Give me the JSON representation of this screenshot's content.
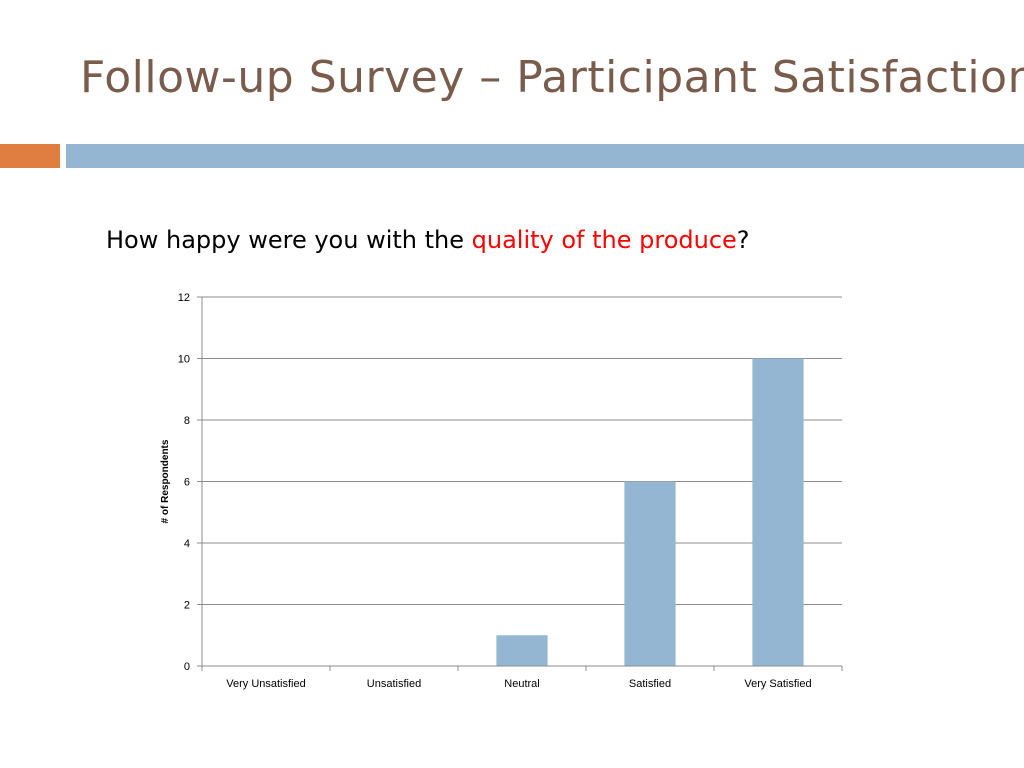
{
  "slide": {
    "title": "Follow-up Survey – Participant Satisfaction",
    "question_prefix": "How happy were you with the ",
    "question_highlight": "quality of the produce",
    "question_suffix": "?",
    "colors": {
      "title": "#7a5c4c",
      "accent_orange": "#e07e41",
      "accent_blue": "#94b6d2",
      "highlight": "#ff0000"
    }
  },
  "chart_data": {
    "type": "bar",
    "categories": [
      "Very Unsatisfied",
      "Unsatisfied",
      "Neutral",
      "Satisfied",
      "Very Satisfied"
    ],
    "values": [
      0,
      0,
      1,
      6,
      10
    ],
    "ylabel": "# of Respondents",
    "xlabel": "",
    "ylim": [
      0,
      12
    ],
    "yticks": [
      0,
      2,
      4,
      6,
      8,
      10,
      12
    ],
    "grid": true,
    "legend": "none",
    "bar_color": "#94b6d2"
  }
}
